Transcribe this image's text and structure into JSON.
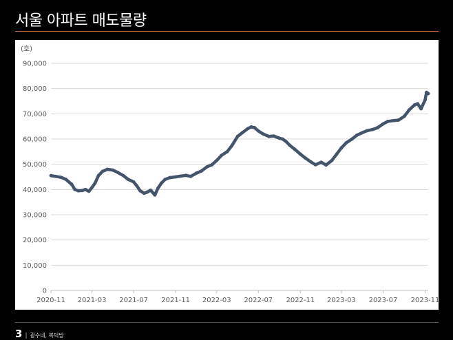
{
  "slide": {
    "title": "서울 아파트 매도물량",
    "page_number": "3",
    "footer_sep": "|",
    "footer_text": "광수네, 복덕방"
  },
  "colors": {
    "line": "#44546a",
    "grid": "#d9d9d9",
    "accent_rule": "#c0703a"
  },
  "chart_data": {
    "type": "line",
    "title": "",
    "xlabel": "",
    "ylabel": "(호)",
    "ylim": [
      0,
      90000
    ],
    "yticks": [
      0,
      10000,
      20000,
      30000,
      40000,
      50000,
      60000,
      70000,
      80000,
      90000
    ],
    "ytick_labels": [
      "0",
      "10,000",
      "20,000",
      "30,000",
      "40,000",
      "50,000",
      "60,000",
      "70,000",
      "80,000",
      "90,000"
    ],
    "xtick_labels": [
      "2020-11",
      "2021-03",
      "2021-07",
      "2021-11",
      "2022-03",
      "2022-07",
      "2022-11",
      "2023-03",
      "2023-07",
      "2023-11"
    ],
    "xlim": [
      "2020-11-01",
      "2023-11-10"
    ],
    "grid": true,
    "legend": "none",
    "series": [
      {
        "x": [
          "2020-11-01",
          "2020-11-15",
          "2020-12-01",
          "2020-12-15",
          "2021-01-01",
          "2021-01-10",
          "2021-01-20",
          "2021-02-01",
          "2021-02-10",
          "2021-02-20",
          "2021-03-01",
          "2021-03-10",
          "2021-03-20",
          "2021-04-01",
          "2021-04-15",
          "2021-05-01",
          "2021-05-15",
          "2021-06-01",
          "2021-06-15",
          "2021-07-01",
          "2021-07-10",
          "2021-07-20",
          "2021-08-01",
          "2021-08-10",
          "2021-08-20",
          "2021-09-01",
          "2021-09-10",
          "2021-09-20",
          "2021-10-01",
          "2021-10-15",
          "2021-11-01",
          "2021-11-15",
          "2021-12-01",
          "2021-12-15",
          "2022-01-01",
          "2022-01-15",
          "2022-02-01",
          "2022-02-15",
          "2022-03-01",
          "2022-03-15",
          "2022-04-01",
          "2022-04-15",
          "2022-05-01",
          "2022-05-15",
          "2022-06-01",
          "2022-06-10",
          "2022-06-20",
          "2022-07-01",
          "2022-07-15",
          "2022-08-01",
          "2022-08-15",
          "2022-09-01",
          "2022-09-10",
          "2022-09-20",
          "2022-10-01",
          "2022-10-15",
          "2022-11-01",
          "2022-11-15",
          "2022-12-01",
          "2022-12-15",
          "2023-01-01",
          "2023-01-15",
          "2023-02-01",
          "2023-02-15",
          "2023-03-01",
          "2023-03-15",
          "2023-04-01",
          "2023-04-15",
          "2023-05-01",
          "2023-05-15",
          "2023-06-01",
          "2023-06-15",
          "2023-07-01",
          "2023-07-15",
          "2023-08-01",
          "2023-08-15",
          "2023-09-01",
          "2023-09-15",
          "2023-10-01",
          "2023-10-10",
          "2023-10-20",
          "2023-11-01",
          "2023-11-05",
          "2023-11-10"
        ],
        "values": [
          45500,
          45200,
          44800,
          44000,
          42000,
          40000,
          39500,
          39600,
          40000,
          39300,
          40800,
          42500,
          45500,
          47200,
          48000,
          47700,
          46800,
          45500,
          44000,
          43000,
          41500,
          39500,
          38500,
          39000,
          39700,
          37800,
          40500,
          42500,
          44000,
          44700,
          45000,
          45300,
          45600,
          45200,
          46500,
          47300,
          49000,
          49800,
          51500,
          53500,
          55000,
          57500,
          61000,
          62500,
          64200,
          64800,
          64500,
          63200,
          62000,
          61000,
          61200,
          60300,
          60000,
          59000,
          57500,
          56000,
          54000,
          52500,
          51000,
          49800,
          50800,
          49700,
          51500,
          54000,
          56500,
          58500,
          60000,
          61500,
          62500,
          63300,
          63800,
          64500,
          66000,
          67000,
          67300,
          67500,
          69000,
          71500,
          73500,
          74000,
          72000,
          75500,
          78500,
          78000
        ]
      }
    ]
  }
}
